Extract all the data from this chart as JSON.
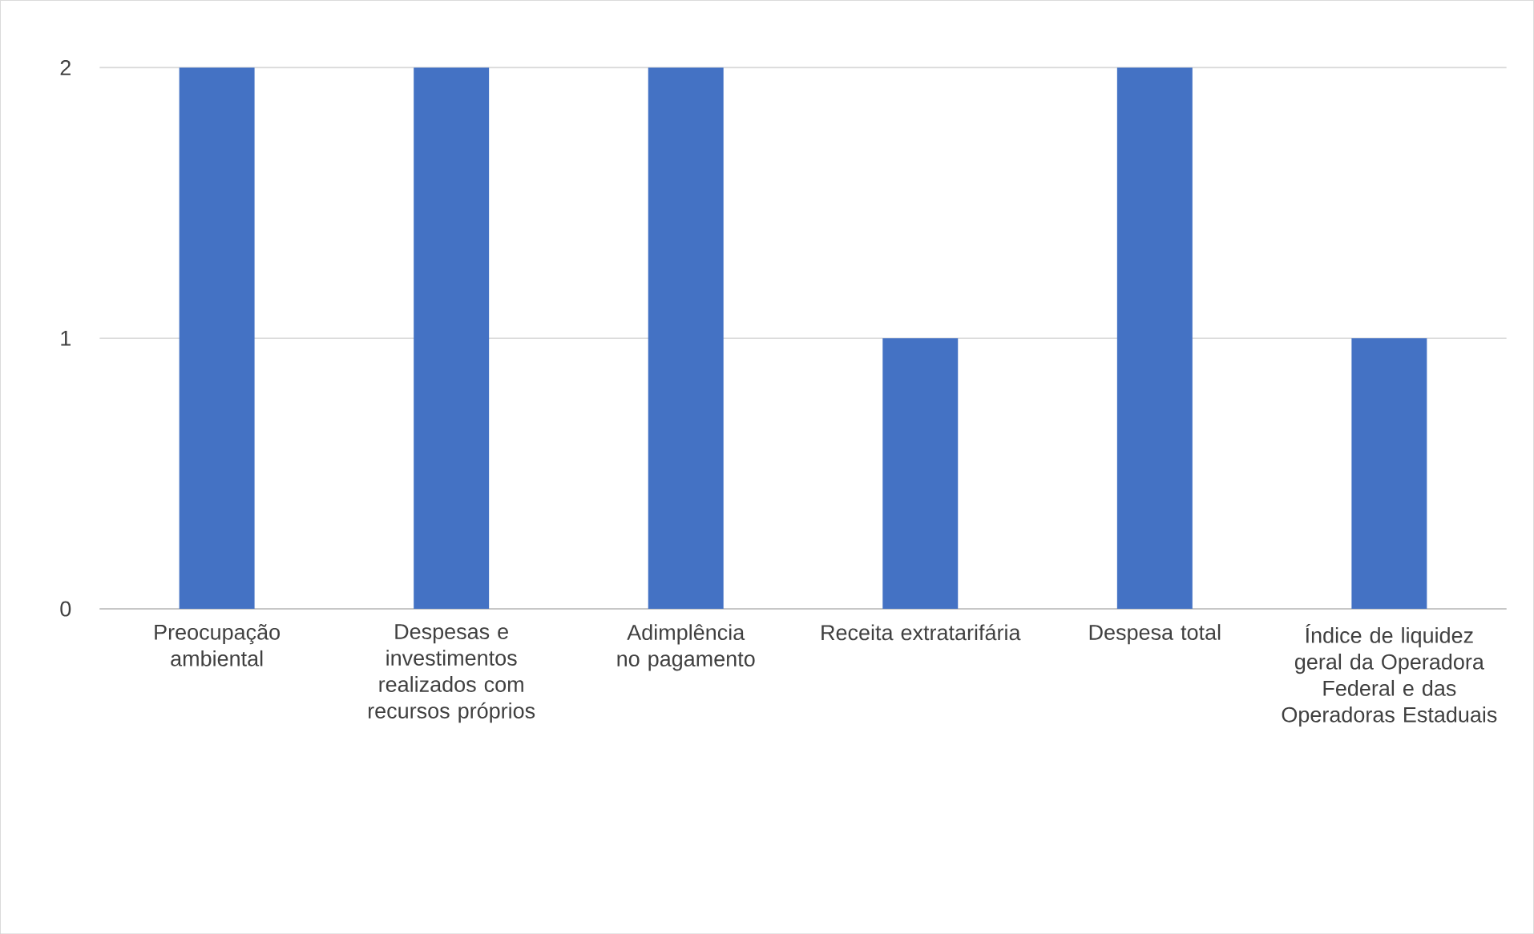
{
  "chart_data": {
    "type": "bar",
    "categories": [
      "Preocupação ambiental",
      "Despesas e investimentos realizados com recursos próprios",
      "Adimplência no pagamento",
      "Receita extratarifária",
      "Despesa total",
      "Índice de liquidez geral da Operadora Federal e das Operadoras Estaduais"
    ],
    "values": [
      2,
      2,
      2,
      1,
      2,
      1
    ],
    "color": "#4472c4",
    "ylim": [
      0,
      2
    ],
    "yticks": [
      0,
      1,
      2
    ],
    "grid": "y"
  }
}
